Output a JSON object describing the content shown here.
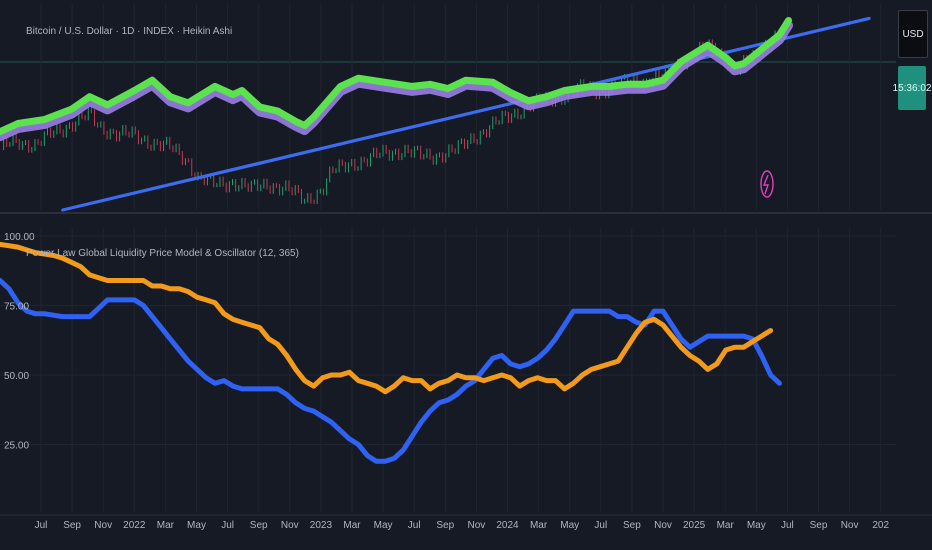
{
  "colors": {
    "background": "#161a25",
    "grid": "#1f2430",
    "separator": "#2a2e39",
    "text": "#b2b5be",
    "trend": "#3c6cf0",
    "model_green": "#5be24e",
    "model_purple": "#9a7ee6",
    "candle_up": "#22a06b",
    "candle_down": "#c4394f",
    "blue_series": "#2f62f2",
    "orange_series": "#f19a1c",
    "usd_badge_bg": "#0b0d12",
    "countdown_bg": "#1f8f7e",
    "lightning": "#e040c0"
  },
  "price_pane": {
    "title": "Bitcoin / U.S. Dollar · 1D · INDEX · Heikin Ashi",
    "currency_badge": "USD",
    "countdown_badge": "15:36:02",
    "lightning_icon": "lightning-icon"
  },
  "oscillator_pane": {
    "title": "Power Law Global Liquidity Price Model & Oscillator (12, 365)"
  },
  "chart_data": [
    {
      "type": "line",
      "title": "Bitcoin / U.S. Dollar · 1D · INDEX · Heikin Ashi",
      "x_axis": "time",
      "scale": "log",
      "y_labels_visible": false,
      "series": [
        {
          "values": [
            [
              0.0,
              0.38
            ],
            [
              0.02,
              0.42
            ],
            [
              0.05,
              0.44
            ],
            [
              0.08,
              0.49
            ],
            [
              0.1,
              0.55
            ],
            [
              0.12,
              0.51
            ],
            [
              0.15,
              0.58
            ],
            [
              0.17,
              0.63
            ],
            [
              0.19,
              0.55
            ],
            [
              0.21,
              0.52
            ],
            [
              0.24,
              0.6
            ],
            [
              0.26,
              0.56
            ],
            [
              0.27,
              0.58
            ],
            [
              0.29,
              0.5
            ],
            [
              0.31,
              0.48
            ],
            [
              0.33,
              0.43
            ],
            [
              0.34,
              0.41
            ],
            [
              0.35,
              0.45
            ],
            [
              0.38,
              0.6
            ],
            [
              0.4,
              0.64
            ],
            [
              0.43,
              0.62
            ],
            [
              0.46,
              0.6
            ],
            [
              0.48,
              0.61
            ],
            [
              0.5,
              0.59
            ],
            [
              0.52,
              0.63
            ],
            [
              0.55,
              0.62
            ],
            [
              0.57,
              0.57
            ],
            [
              0.59,
              0.53
            ],
            [
              0.61,
              0.55
            ],
            [
              0.63,
              0.58
            ],
            [
              0.66,
              0.6
            ],
            [
              0.68,
              0.6
            ],
            [
              0.7,
              0.61
            ],
            [
              0.72,
              0.61
            ],
            [
              0.74,
              0.63
            ],
            [
              0.76,
              0.72
            ],
            [
              0.79,
              0.8
            ],
            [
              0.81,
              0.74
            ],
            [
              0.82,
              0.7
            ],
            [
              0.83,
              0.71
            ],
            [
              0.85,
              0.78
            ],
            [
              0.87,
              0.85
            ],
            [
              0.88,
              0.92
            ]
          ]
        },
        {
          "values": [
            [
              0.0,
              0.3
            ],
            [
              0.02,
              0.34
            ],
            [
              0.04,
              0.31
            ],
            [
              0.06,
              0.38
            ],
            [
              0.08,
              0.42
            ],
            [
              0.1,
              0.46
            ],
            [
              0.11,
              0.41
            ],
            [
              0.13,
              0.37
            ],
            [
              0.15,
              0.36
            ],
            [
              0.17,
              0.33
            ],
            [
              0.19,
              0.3
            ],
            [
              0.21,
              0.24
            ],
            [
              0.22,
              0.16
            ],
            [
              0.24,
              0.12
            ],
            [
              0.26,
              0.14
            ],
            [
              0.28,
              0.1
            ],
            [
              0.3,
              0.13
            ],
            [
              0.32,
              0.1
            ],
            [
              0.34,
              0.05
            ],
            [
              0.36,
              0.1
            ],
            [
              0.37,
              0.18
            ],
            [
              0.39,
              0.23
            ],
            [
              0.41,
              0.24
            ],
            [
              0.43,
              0.28
            ],
            [
              0.45,
              0.29
            ],
            [
              0.47,
              0.26
            ],
            [
              0.49,
              0.27
            ],
            [
              0.51,
              0.29
            ],
            [
              0.53,
              0.36
            ],
            [
              0.55,
              0.41
            ],
            [
              0.57,
              0.46
            ],
            [
              0.59,
              0.51
            ],
            [
              0.61,
              0.53
            ],
            [
              0.63,
              0.56
            ],
            [
              0.65,
              0.59
            ],
            [
              0.67,
              0.58
            ],
            [
              0.7,
              0.62
            ],
            [
              0.72,
              0.63
            ],
            [
              0.74,
              0.65
            ],
            [
              0.76,
              0.72
            ],
            [
              0.78,
              0.77
            ],
            [
              0.8,
              0.79
            ],
            [
              0.81,
              0.73
            ],
            [
              0.82,
              0.68
            ],
            [
              0.84,
              0.73
            ],
            [
              0.85,
              0.8
            ],
            [
              0.87,
              0.86
            ],
            [
              0.88,
              0.89
            ]
          ]
        },
        {
          "values": [
            [
              0.07,
              0.0
            ],
            [
              0.97,
              0.93
            ]
          ]
        }
      ]
    },
    {
      "type": "line",
      "title": "Power Law Global Liquidity Price Model & Oscillator (12, 365)",
      "x_ticks": [
        "Jul",
        "Sep",
        "Nov",
        "2022",
        "Mar",
        "May",
        "Jul",
        "Sep",
        "Nov",
        "2023",
        "Mar",
        "May",
        "Jul",
        "Sep",
        "Nov",
        "2024",
        "Mar",
        "May",
        "Jul",
        "Sep",
        "Nov",
        "2025",
        "Mar",
        "May",
        "Jul",
        "Sep",
        "Nov",
        "202"
      ],
      "y_ticks": [
        100,
        75,
        50,
        25
      ],
      "y_tick_labels": [
        "100.00",
        "75.00",
        "50.00",
        "25.00"
      ],
      "ylim": [
        0,
        100
      ],
      "series": [
        {
          "values": [
            [
              0.0,
              84
            ],
            [
              0.01,
              81
            ],
            [
              0.02,
              76
            ],
            [
              0.03,
              73
            ],
            [
              0.04,
              72
            ],
            [
              0.05,
              72
            ],
            [
              0.07,
              71
            ],
            [
              0.08,
              71
            ],
            [
              0.09,
              71
            ],
            [
              0.1,
              71
            ],
            [
              0.11,
              74
            ],
            [
              0.12,
              77
            ],
            [
              0.13,
              77
            ],
            [
              0.14,
              77
            ],
            [
              0.15,
              77
            ],
            [
              0.16,
              75
            ],
            [
              0.17,
              71
            ],
            [
              0.18,
              67
            ],
            [
              0.19,
              63
            ],
            [
              0.2,
              59
            ],
            [
              0.21,
              55
            ],
            [
              0.22,
              52
            ],
            [
              0.23,
              49
            ],
            [
              0.24,
              47
            ],
            [
              0.25,
              48
            ],
            [
              0.26,
              46
            ],
            [
              0.27,
              45
            ],
            [
              0.28,
              45
            ],
            [
              0.29,
              45
            ],
            [
              0.3,
              45
            ],
            [
              0.31,
              45
            ],
            [
              0.32,
              43
            ],
            [
              0.33,
              40
            ],
            [
              0.34,
              38
            ],
            [
              0.35,
              37
            ],
            [
              0.36,
              35
            ],
            [
              0.37,
              33
            ],
            [
              0.38,
              30
            ],
            [
              0.39,
              27
            ],
            [
              0.4,
              25
            ],
            [
              0.41,
              21
            ],
            [
              0.42,
              19
            ],
            [
              0.43,
              19
            ],
            [
              0.44,
              20
            ],
            [
              0.45,
              23
            ],
            [
              0.46,
              28
            ],
            [
              0.47,
              33
            ],
            [
              0.48,
              37
            ],
            [
              0.49,
              40
            ],
            [
              0.5,
              41
            ],
            [
              0.51,
              43
            ],
            [
              0.52,
              46
            ],
            [
              0.53,
              48
            ],
            [
              0.54,
              52
            ],
            [
              0.55,
              56
            ],
            [
              0.56,
              57
            ],
            [
              0.57,
              54
            ],
            [
              0.58,
              53
            ],
            [
              0.59,
              54
            ],
            [
              0.6,
              56
            ],
            [
              0.61,
              59
            ],
            [
              0.62,
              63
            ],
            [
              0.63,
              68
            ],
            [
              0.64,
              73
            ],
            [
              0.65,
              73
            ],
            [
              0.66,
              73
            ],
            [
              0.67,
              73
            ],
            [
              0.68,
              73
            ],
            [
              0.69,
              71
            ],
            [
              0.7,
              71
            ],
            [
              0.71,
              69
            ],
            [
              0.72,
              68
            ],
            [
              0.73,
              73
            ],
            [
              0.74,
              73
            ],
            [
              0.75,
              68
            ],
            [
              0.76,
              63
            ],
            [
              0.77,
              60
            ],
            [
              0.78,
              62
            ],
            [
              0.79,
              64
            ],
            [
              0.8,
              64
            ],
            [
              0.81,
              64
            ],
            [
              0.82,
              64
            ],
            [
              0.83,
              64
            ],
            [
              0.84,
              63
            ],
            [
              0.85,
              57
            ],
            [
              0.86,
              50
            ],
            [
              0.87,
              47
            ]
          ]
        },
        {
          "values": [
            [
              0.0,
              97
            ],
            [
              0.02,
              96
            ],
            [
              0.04,
              94
            ],
            [
              0.06,
              93
            ],
            [
              0.07,
              92
            ],
            [
              0.09,
              89
            ],
            [
              0.1,
              86
            ],
            [
              0.11,
              85
            ],
            [
              0.12,
              84
            ],
            [
              0.13,
              84
            ],
            [
              0.14,
              84
            ],
            [
              0.15,
              84
            ],
            [
              0.16,
              84
            ],
            [
              0.17,
              82
            ],
            [
              0.18,
              82
            ],
            [
              0.19,
              81
            ],
            [
              0.2,
              81
            ],
            [
              0.21,
              80
            ],
            [
              0.22,
              78
            ],
            [
              0.23,
              77
            ],
            [
              0.24,
              76
            ],
            [
              0.25,
              72
            ],
            [
              0.26,
              70
            ],
            [
              0.27,
              69
            ],
            [
              0.28,
              68
            ],
            [
              0.29,
              67
            ],
            [
              0.3,
              63
            ],
            [
              0.31,
              61
            ],
            [
              0.32,
              57
            ],
            [
              0.33,
              52
            ],
            [
              0.34,
              48
            ],
            [
              0.35,
              46
            ],
            [
              0.36,
              49
            ],
            [
              0.37,
              50
            ],
            [
              0.38,
              50
            ],
            [
              0.39,
              51
            ],
            [
              0.4,
              48
            ],
            [
              0.41,
              47
            ],
            [
              0.42,
              46
            ],
            [
              0.43,
              44
            ],
            [
              0.44,
              46
            ],
            [
              0.45,
              49
            ],
            [
              0.46,
              48
            ],
            [
              0.47,
              48
            ],
            [
              0.48,
              45
            ],
            [
              0.49,
              47
            ],
            [
              0.5,
              48
            ],
            [
              0.51,
              50
            ],
            [
              0.52,
              49
            ],
            [
              0.53,
              49
            ],
            [
              0.54,
              48
            ],
            [
              0.55,
              49
            ],
            [
              0.56,
              50
            ],
            [
              0.57,
              49
            ],
            [
              0.58,
              46
            ],
            [
              0.59,
              48
            ],
            [
              0.6,
              49
            ],
            [
              0.61,
              48
            ],
            [
              0.62,
              48
            ],
            [
              0.63,
              45
            ],
            [
              0.64,
              47
            ],
            [
              0.65,
              50
            ],
            [
              0.66,
              52
            ],
            [
              0.67,
              53
            ],
            [
              0.68,
              54
            ],
            [
              0.69,
              55
            ],
            [
              0.7,
              60
            ],
            [
              0.71,
              65
            ],
            [
              0.72,
              69
            ],
            [
              0.73,
              70
            ],
            [
              0.74,
              68
            ],
            [
              0.75,
              64
            ],
            [
              0.76,
              60
            ],
            [
              0.77,
              57
            ],
            [
              0.78,
              55
            ],
            [
              0.79,
              52
            ],
            [
              0.8,
              54
            ],
            [
              0.81,
              59
            ],
            [
              0.82,
              60
            ],
            [
              0.83,
              60
            ],
            [
              0.84,
              62
            ],
            [
              0.85,
              64
            ],
            [
              0.86,
              66
            ]
          ]
        }
      ]
    }
  ]
}
